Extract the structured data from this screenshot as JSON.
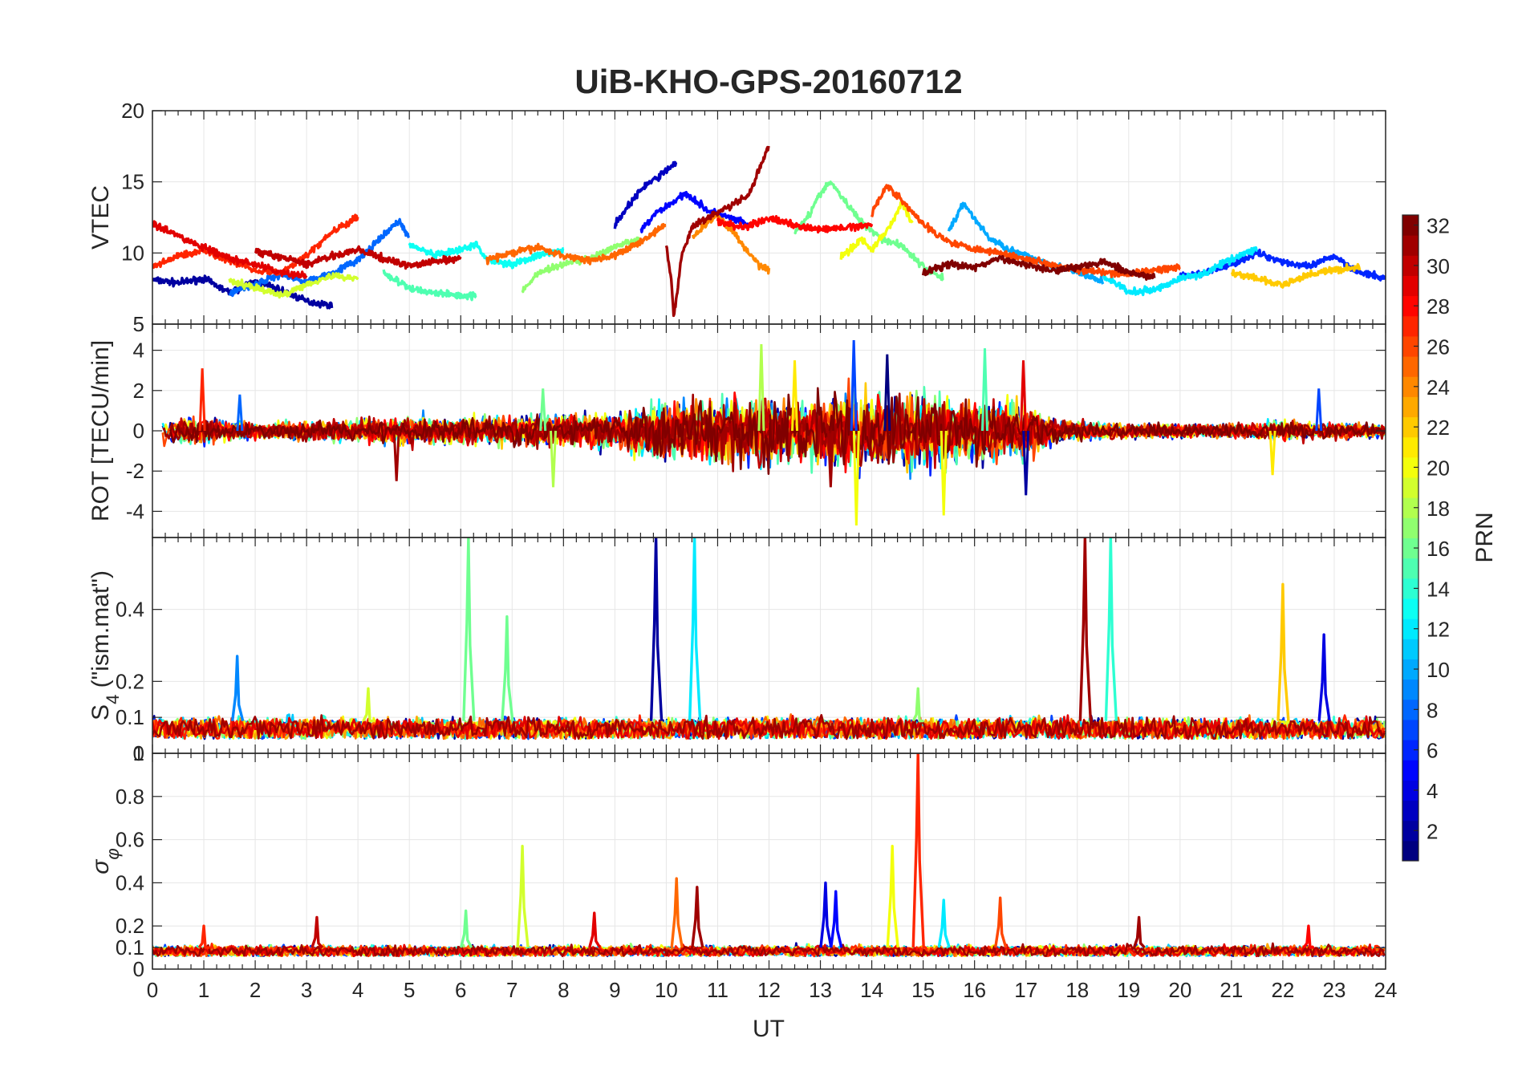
{
  "chart_data": {
    "type": "line",
    "title": "UiB-KHO-GPS-20160712",
    "xlabel": "UT",
    "xlim": [
      0,
      24
    ],
    "x_ticks": [
      "0",
      "1",
      "2",
      "3",
      "4",
      "5",
      "6",
      "7",
      "8",
      "9",
      "10",
      "11",
      "12",
      "13",
      "14",
      "15",
      "16",
      "17",
      "18",
      "19",
      "20",
      "21",
      "22",
      "23",
      "24"
    ],
    "grid": true,
    "colorbar": {
      "label": "PRN",
      "colormap": "jet",
      "range": [
        1,
        32
      ],
      "ticks": [
        "2",
        "4",
        "6",
        "8",
        "10",
        "12",
        "14",
        "16",
        "18",
        "20",
        "22",
        "24",
        "26",
        "28",
        "30",
        "32"
      ]
    },
    "panels": [
      {
        "id": "vtec",
        "ylabel": "VTEC",
        "ylim": [
          5,
          20
        ],
        "y_ticks": [
          "5",
          "10",
          "15",
          "20"
        ],
        "y_tick_values": [
          5,
          10,
          15,
          20
        ],
        "series": [
          {
            "prn": 2,
            "x": [
              0,
              0.5,
              1,
              1.5,
              2,
              2.5,
              3,
              3.5
            ],
            "y": [
              8.1,
              7.9,
              8.2,
              7.2,
              8.0,
              7.4,
              6.6,
              6.3
            ]
          },
          {
            "prn": 3,
            "x": [
              9,
              9.3,
              9.6,
              9.8,
              10,
              10.2
            ],
            "y": [
              12.0,
              13.5,
              14.8,
              15.2,
              15.8,
              16.4
            ]
          },
          {
            "prn": 5,
            "x": [
              9.5,
              9.8,
              10.1,
              10.4,
              10.8,
              11.2,
              11.6
            ],
            "y": [
              11.5,
              12.8,
              13.5,
              14.2,
              13.0,
              12.5,
              12.0
            ]
          },
          {
            "prn": 6,
            "x": [
              20,
              20.5,
              21,
              21.5,
              22,
              22.5,
              23,
              23.5,
              24
            ],
            "y": [
              8.3,
              8.6,
              9.2,
              10.0,
              9.4,
              9.0,
              9.8,
              8.6,
              8.2
            ]
          },
          {
            "prn": 8,
            "x": [
              1.5,
              2,
              2.5,
              3,
              3.5,
              4,
              4.5,
              4.8,
              5
            ],
            "y": [
              7.2,
              7.8,
              8.5,
              8.0,
              8.6,
              9.5,
              11.2,
              12.3,
              11.0
            ]
          },
          {
            "prn": 10,
            "x": [
              15.5,
              15.8,
              16,
              16.3,
              16.7,
              17,
              17.5,
              18,
              18.5
            ],
            "y": [
              11.6,
              13.5,
              12.4,
              11.0,
              10.2,
              9.8,
              9.2,
              8.6,
              8.0
            ]
          },
          {
            "prn": 12,
            "x": [
              18.5,
              18.8,
              19,
              19.5,
              20,
              20.5,
              21,
              21.5
            ],
            "y": [
              8.3,
              7.8,
              7.2,
              7.4,
              8.2,
              8.6,
              9.6,
              10.3
            ]
          },
          {
            "prn": 13,
            "x": [
              5,
              5.5,
              6,
              6.3,
              6.5,
              7,
              7.5,
              8
            ],
            "y": [
              10.6,
              9.8,
              10.2,
              10.6,
              9.6,
              9.2,
              9.8,
              10.2
            ]
          },
          {
            "prn": 15,
            "x": [
              4.5,
              5,
              5.5,
              6,
              6.3
            ],
            "y": [
              8.6,
              7.5,
              7.2,
              7.0,
              7.0
            ]
          },
          {
            "prn": 16,
            "x": [
              12.5,
              12.8,
              13,
              13.2,
              13.5,
              13.8,
              14.2,
              14.6,
              15,
              15.4
            ],
            "y": [
              11.5,
              12.8,
              14.2,
              15.0,
              13.5,
              12.2,
              11.0,
              10.5,
              9.0,
              8.2
            ]
          },
          {
            "prn": 17,
            "x": [
              7.2,
              7.5,
              8,
              8.5,
              9,
              9.5
            ],
            "y": [
              7.3,
              8.6,
              9.2,
              9.6,
              10.4,
              11.0
            ]
          },
          {
            "prn": 19,
            "x": [
              1.5,
              2,
              2.5,
              3,
              3.5,
              4
            ],
            "y": [
              8.0,
              7.6,
              7.0,
              7.8,
              8.4,
              8.2
            ]
          },
          {
            "prn": 20,
            "x": [
              13.4,
              13.6,
              13.8,
              14,
              14.3,
              14.6,
              14.8
            ],
            "y": [
              9.8,
              10.3,
              11.0,
              10.2,
              11.6,
              13.5,
              12.0
            ]
          },
          {
            "prn": 22,
            "x": [
              21,
              21.5,
              22,
              22.5,
              23,
              23.5
            ],
            "y": [
              8.6,
              8.2,
              7.7,
              8.5,
              8.8,
              9.0
            ]
          },
          {
            "prn": 24,
            "x": [
              10.5,
              10.8,
              11,
              11.3,
              11.6,
              11.8,
              12
            ],
            "y": [
              11.0,
              12.2,
              12.6,
              11.5,
              10.0,
              9.2,
              8.8
            ]
          },
          {
            "prn": 25,
            "x": [
              6.5,
              7,
              7.5,
              8,
              8.5,
              9,
              9.5,
              10
            ],
            "y": [
              9.5,
              10.0,
              10.4,
              9.8,
              9.5,
              9.8,
              10.8,
              12.0
            ]
          },
          {
            "prn": 26,
            "x": [
              14,
              14.3,
              14.6,
              15,
              15.5,
              16,
              16.5,
              17,
              17.5,
              18,
              18.5,
              19,
              19.5,
              20
            ],
            "y": [
              12.8,
              14.8,
              13.6,
              12.0,
              10.8,
              10.3,
              10.0,
              9.6,
              9.2,
              8.8,
              8.6,
              8.5,
              8.8,
              9.0
            ]
          },
          {
            "prn": 27,
            "x": [
              0,
              0.5,
              1,
              1.5,
              2,
              2.5,
              3,
              3.5,
              4
            ],
            "y": [
              9.0,
              9.8,
              10.2,
              9.5,
              8.8,
              8.6,
              9.8,
              11.5,
              12.5
            ]
          },
          {
            "prn": 28,
            "x": [
              11,
              11.5,
              12,
              12.5,
              13,
              13.5,
              14
            ],
            "y": [
              12.2,
              11.8,
              12.4,
              12.0,
              11.6,
              11.8,
              12.0
            ]
          },
          {
            "prn": 29,
            "x": [
              0,
              0.3,
              0.6,
              1,
              1.5,
              2,
              2.5,
              3
            ],
            "y": [
              12.1,
              11.6,
              11.0,
              10.4,
              9.6,
              9.2,
              8.6,
              8.4
            ]
          },
          {
            "prn": 30,
            "x": [
              2,
              2.5,
              3,
              3.5,
              4,
              4.5,
              5,
              5.5,
              6
            ],
            "y": [
              10.1,
              9.7,
              9.2,
              9.8,
              10.2,
              9.6,
              9.1,
              9.4,
              9.6
            ]
          },
          {
            "prn": 31,
            "x": [
              10,
              10.1,
              10.15,
              10.2,
              10.3,
              10.5,
              10.8,
              11.2,
              11.6,
              12
            ],
            "y": [
              10.5,
              8.0,
              5.6,
              6.8,
              9.8,
              11.8,
              12.5,
              13.2,
              14.0,
              17.6
            ]
          },
          {
            "prn": 32,
            "x": [
              15,
              15.5,
              16,
              16.5,
              17,
              17.5,
              18,
              18.5,
              19,
              19.5
            ],
            "y": [
              8.6,
              9.2,
              9.0,
              9.6,
              9.2,
              8.8,
              9.0,
              9.4,
              8.6,
              8.3
            ]
          }
        ]
      },
      {
        "id": "rot",
        "ylabel": "ROT [TECU/min]",
        "ylim": [
          -5.3,
          5.3
        ],
        "y_ticks": [
          "-4",
          "-2",
          "0",
          "2",
          "4"
        ],
        "y_tick_values": [
          -4,
          -2,
          0,
          2,
          4
        ],
        "envelope": {
          "x": [
            0,
            1,
            2,
            3,
            4,
            5,
            6,
            7,
            8,
            9,
            9.5,
            10,
            10.5,
            11,
            11.5,
            12,
            12.5,
            13,
            13.5,
            14,
            14.5,
            15,
            15.5,
            16,
            16.5,
            17,
            17.5,
            18,
            19,
            20,
            21,
            22,
            23,
            24
          ],
          "amplitude": [
            0.8,
            0.9,
            0.6,
            0.7,
            0.8,
            1.1,
            1.0,
            1.1,
            1.2,
            1.3,
            1.8,
            2.3,
            2.2,
            2.5,
            2.2,
            2.6,
            2.2,
            2.5,
            3.2,
            2.7,
            2.7,
            2.6,
            2.5,
            2.3,
            2.2,
            2.1,
            1.0,
            0.7,
            0.6,
            0.5,
            0.5,
            0.7,
            0.6,
            0.5
          ]
        },
        "spikes": [
          {
            "x": 0.97,
            "y": 3.1
          },
          {
            "x": 1.7,
            "y": 1.8
          },
          {
            "x": 4.75,
            "y": -2.5
          },
          {
            "x": 7.6,
            "y": 2.1
          },
          {
            "x": 7.8,
            "y": -2.8
          },
          {
            "x": 11.85,
            "y": 4.3
          },
          {
            "x": 12.5,
            "y": 3.5
          },
          {
            "x": 13.2,
            "y": -2.8
          },
          {
            "x": 13.65,
            "y": 4.5
          },
          {
            "x": 13.7,
            "y": -4.7
          },
          {
            "x": 14.3,
            "y": 3.8
          },
          {
            "x": 15.4,
            "y": -4.2
          },
          {
            "x": 16.2,
            "y": 4.1
          },
          {
            "x": 16.95,
            "y": 3.5
          },
          {
            "x": 17.0,
            "y": -3.2
          },
          {
            "x": 21.8,
            "y": -2.2
          },
          {
            "x": 22.7,
            "y": 2.1
          }
        ]
      },
      {
        "id": "s4",
        "ylabel": "S4 (\"ism.mat\")",
        "ylabel_main": "S",
        "ylabel_sub": "4",
        "ylabel_rest": " (\"ism.mat\")",
        "ylim": [
          0,
          0.6
        ],
        "y_ticks": [
          "0",
          "0.1",
          "0.2",
          "0.4"
        ],
        "y_tick_values": [
          0,
          0.1,
          0.2,
          0.4
        ],
        "baseline": {
          "min": 0.04,
          "max": 0.09
        },
        "spikes": [
          {
            "x": 1.65,
            "y": 0.27,
            "prn": 9
          },
          {
            "x": 4.2,
            "y": 0.18,
            "prn": 19
          },
          {
            "x": 6.15,
            "y": 0.6,
            "prn": 16
          },
          {
            "x": 6.9,
            "y": 0.38,
            "prn": 16
          },
          {
            "x": 9.8,
            "y": 0.6,
            "prn": 2
          },
          {
            "x": 10.55,
            "y": 0.6,
            "prn": 12
          },
          {
            "x": 14.9,
            "y": 0.18,
            "prn": 17
          },
          {
            "x": 18.15,
            "y": 0.6,
            "prn": 31
          },
          {
            "x": 18.65,
            "y": 0.6,
            "prn": 14
          },
          {
            "x": 22.0,
            "y": 0.47,
            "prn": 22
          },
          {
            "x": 22.8,
            "y": 0.33,
            "prn": 4
          }
        ]
      },
      {
        "id": "sigma_phi",
        "ylabel": "σφ",
        "ylabel_main": "σ",
        "ylabel_sub": "φ",
        "ylim": [
          0,
          1
        ],
        "y_ticks": [
          "0",
          "0.1",
          "0.2",
          "0.4",
          "0.6",
          "0.8",
          "1"
        ],
        "y_tick_values": [
          0,
          0.1,
          0.2,
          0.4,
          0.6,
          0.8,
          1
        ],
        "baseline": {
          "min": 0.06,
          "max": 0.1
        },
        "spikes": [
          {
            "x": 1.0,
            "y": 0.2,
            "prn": 27
          },
          {
            "x": 3.2,
            "y": 0.24,
            "prn": 30
          },
          {
            "x": 6.1,
            "y": 0.27,
            "prn": 16
          },
          {
            "x": 7.2,
            "y": 0.57,
            "prn": 19
          },
          {
            "x": 8.6,
            "y": 0.26,
            "prn": 29
          },
          {
            "x": 10.2,
            "y": 0.42,
            "prn": 25
          },
          {
            "x": 10.6,
            "y": 0.38,
            "prn": 31
          },
          {
            "x": 13.1,
            "y": 0.4,
            "prn": 4
          },
          {
            "x": 13.3,
            "y": 0.36,
            "prn": 5
          },
          {
            "x": 14.4,
            "y": 0.57,
            "prn": 20
          },
          {
            "x": 14.9,
            "y": 1.0,
            "prn": 27
          },
          {
            "x": 15.4,
            "y": 0.32,
            "prn": 12
          },
          {
            "x": 16.5,
            "y": 0.33,
            "prn": 26
          },
          {
            "x": 19.2,
            "y": 0.24,
            "prn": 31
          },
          {
            "x": 22.5,
            "y": 0.2,
            "prn": 28
          }
        ]
      }
    ]
  }
}
